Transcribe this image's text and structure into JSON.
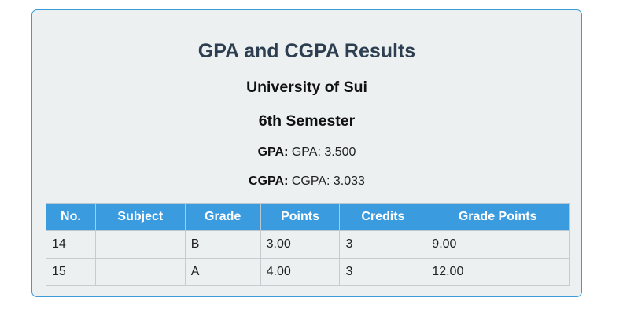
{
  "results": {
    "title": "GPA and CGPA Results",
    "university": "University of Sui",
    "semester": "6th Semester",
    "gpa_label": "GPA:",
    "gpa_value": "GPA: 3.500",
    "cgpa_label": "CGPA:",
    "cgpa_value": "CGPA: 3.033"
  },
  "table": {
    "headers": [
      "No.",
      "Subject",
      "Grade",
      "Points",
      "Credits",
      "Grade Points"
    ],
    "rows": [
      [
        "14",
        "",
        "B",
        "3.00",
        "3",
        "9.00"
      ],
      [
        "15",
        "",
        "A",
        "4.00",
        "3",
        "12.00"
      ]
    ]
  },
  "colors": {
    "card_background": "#ecf0f1",
    "card_border": "#3b9bd6",
    "header_background": "#3b9bdf",
    "title_color": "#2c3e50"
  }
}
